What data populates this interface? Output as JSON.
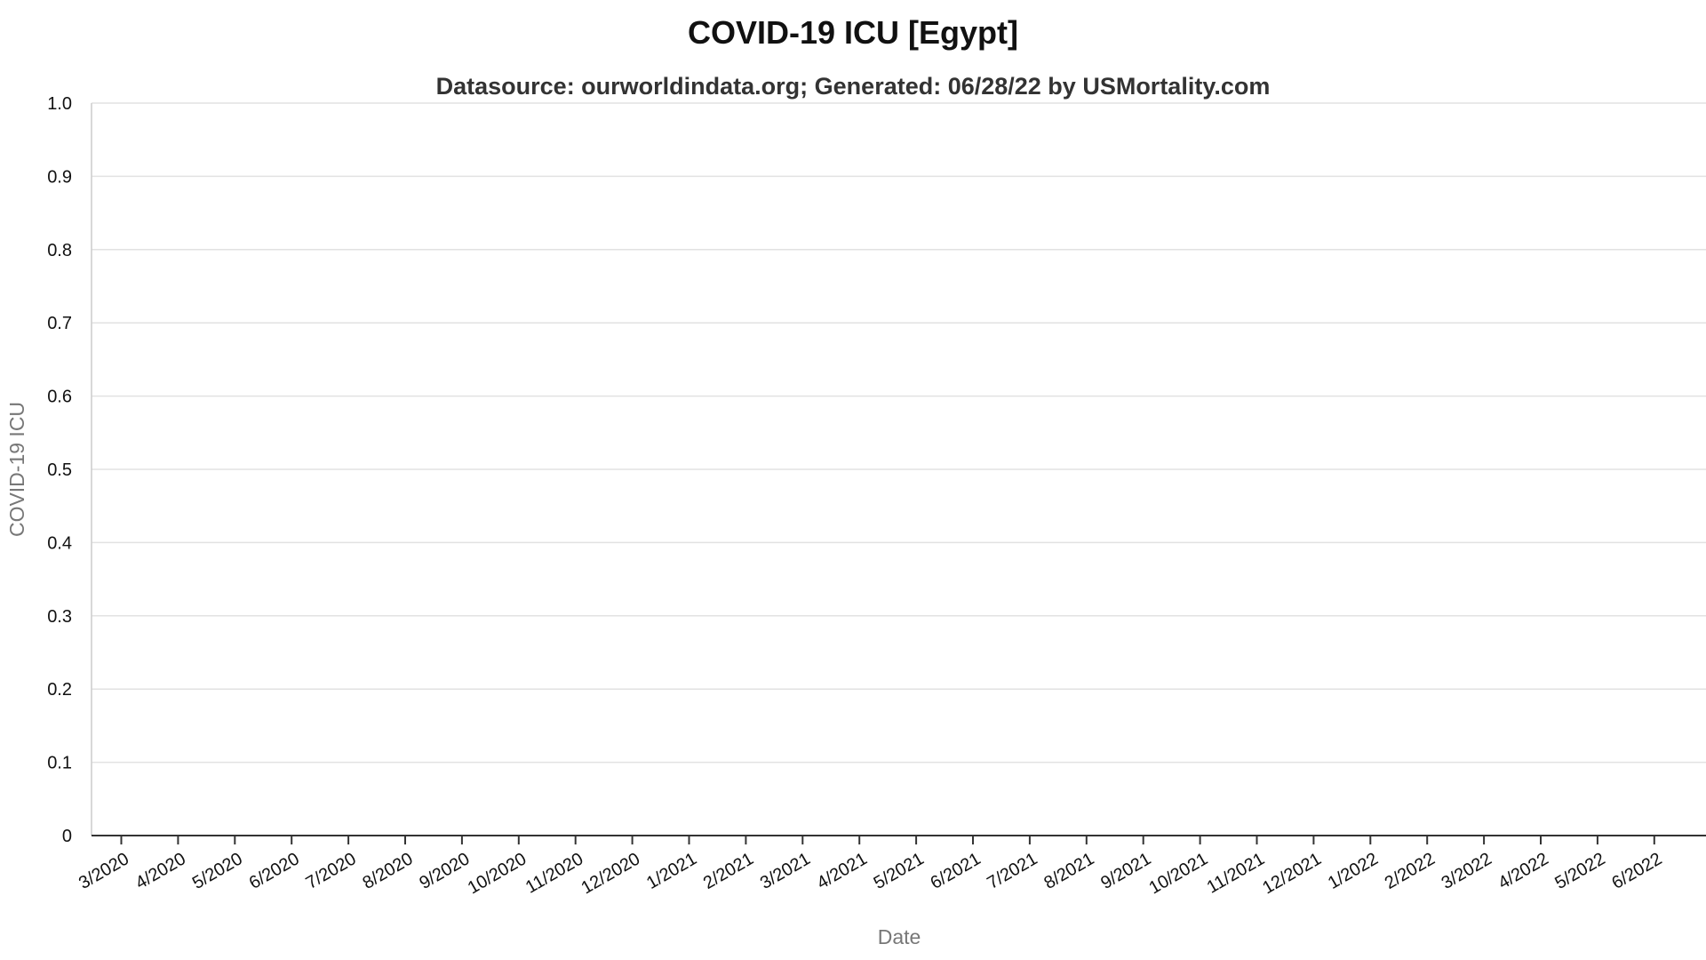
{
  "chart_data": {
    "type": "line",
    "title": "COVID-19 ICU [Egypt]",
    "subtitle": "Datasource: ourworldindata.org; Generated: 06/28/22 by USMortality.com",
    "xlabel": "Date",
    "ylabel": "COVID-19 ICU",
    "x_ticks": [
      "3/2020",
      "4/2020",
      "5/2020",
      "6/2020",
      "7/2020",
      "8/2020",
      "9/2020",
      "10/2020",
      "11/2020",
      "12/2020",
      "1/2021",
      "2/2021",
      "3/2021",
      "4/2021",
      "5/2021",
      "6/2021",
      "7/2021",
      "8/2021",
      "9/2021",
      "10/2021",
      "11/2021",
      "12/2021",
      "1/2022",
      "2/2022",
      "3/2022",
      "4/2022",
      "5/2022",
      "6/2022"
    ],
    "y_ticks": [
      "0",
      "0.1",
      "0.2",
      "0.3",
      "0.4",
      "0.5",
      "0.6",
      "0.7",
      "0.8",
      "0.9",
      "1.0"
    ],
    "ylim": [
      0,
      1.0
    ],
    "grid": true,
    "series": []
  }
}
